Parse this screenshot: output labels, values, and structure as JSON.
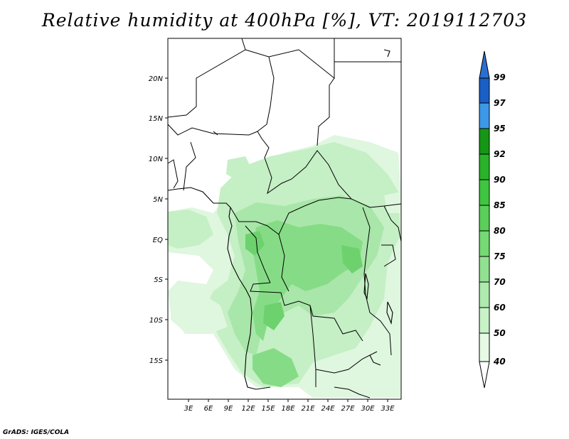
{
  "title": "Relative humidity at 400hPa [%], VT: 2019112703",
  "credit": "GrADS: IGES/COLA",
  "map": {
    "lat_labels": [
      "20N",
      "15N",
      "10N",
      "5N",
      "EQ",
      "5S",
      "10S",
      "15S"
    ],
    "lon_labels": [
      "3E",
      "6E",
      "9E",
      "12E",
      "15E",
      "18E",
      "21E",
      "24E",
      "27E",
      "30E",
      "33E"
    ]
  },
  "colorbar": {
    "labels": [
      "40",
      "50",
      "60",
      "70",
      "75",
      "80",
      "85",
      "90",
      "92",
      "95",
      "97",
      "99"
    ],
    "colors": [
      "#e6fae6",
      "#c8f2c8",
      "#aeeaae",
      "#91e191",
      "#75d975",
      "#5acf5a",
      "#40c540",
      "#2ab22a",
      "#169616",
      "#3e98e8",
      "#2c7cd8",
      "#1a5fc5"
    ]
  },
  "legend_ranges": {
    "low_cap": "#ffffff",
    "high_cap": "#2a6fd0"
  }
}
